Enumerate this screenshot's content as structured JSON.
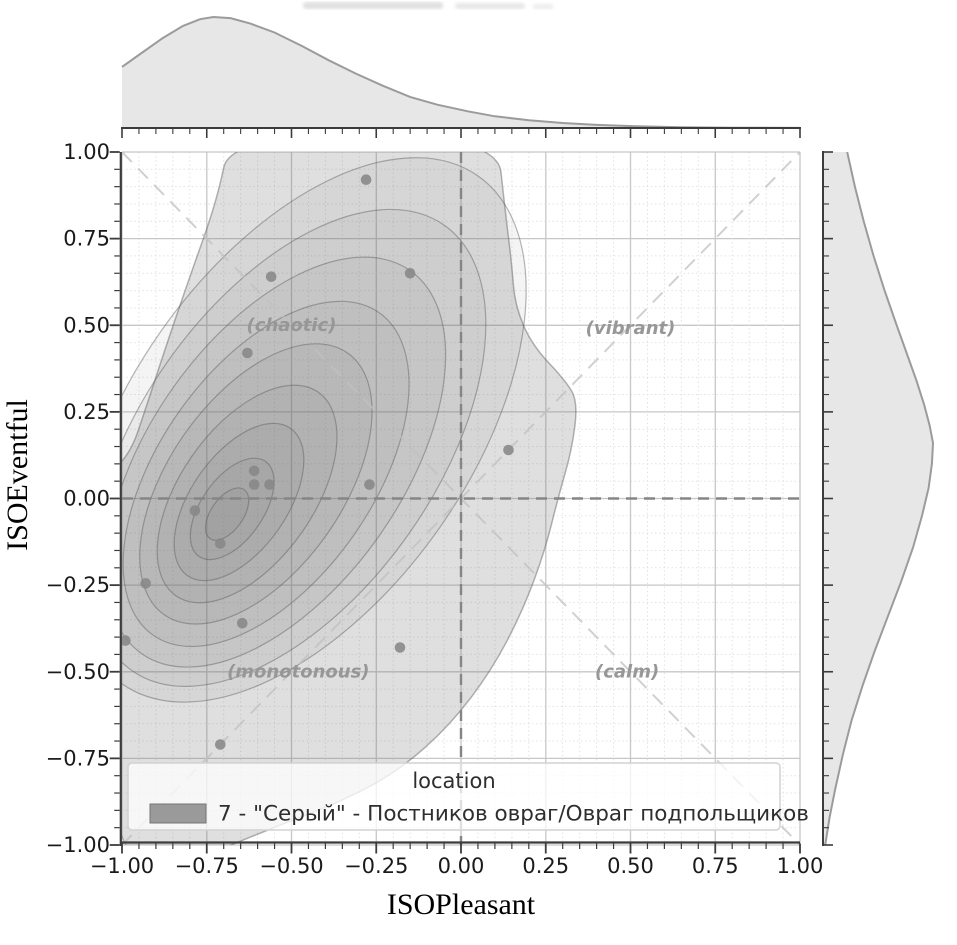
{
  "chart_data": {
    "type": "kde-contour-scatter-jointplot",
    "title": "",
    "xlabel": "ISOPleasant",
    "ylabel": "ISOEventful",
    "xlim": [
      -1,
      1
    ],
    "ylim": [
      -1,
      1
    ],
    "grid": {
      "major": true,
      "minor": true
    },
    "minor_tick_step": 0.05,
    "x_tick_values": [
      -1,
      -0.75,
      -0.5,
      -0.25,
      0,
      0.25,
      0.5,
      0.75,
      1
    ],
    "x_tick_labels": [
      "−1.00",
      "−0.75",
      "−0.50",
      "−0.25",
      "0.00",
      "0.25",
      "0.50",
      "0.75",
      "1.00"
    ],
    "y_tick_values": [
      1,
      0.75,
      0.5,
      0.25,
      0,
      -0.25,
      -0.5,
      -0.75,
      -1
    ],
    "y_tick_labels": [
      "1.00",
      "0.75",
      "0.50",
      "0.25",
      "0.00",
      "−0.25",
      "−0.50",
      "−0.75",
      "−1.00"
    ],
    "reference_lines": {
      "vertical_x": 0,
      "horizontal_y": 0,
      "diagonals": [
        [
          -1,
          -1,
          1,
          1
        ],
        [
          -1,
          1,
          1,
          -1
        ]
      ]
    },
    "quadrant_labels": [
      {
        "text": "(chaotic)",
        "x": -0.5,
        "y": 0.5
      },
      {
        "text": "(vibrant)",
        "x": 0.5,
        "y": 0.49
      },
      {
        "text": "(monotonous)",
        "x": -0.48,
        "y": -0.5
      },
      {
        "text": "(calm)",
        "x": 0.49,
        "y": -0.5
      }
    ],
    "points": [
      [
        -0.28,
        0.92
      ],
      [
        -0.56,
        0.64
      ],
      [
        -0.15,
        0.65
      ],
      [
        -0.63,
        0.42
      ],
      [
        0.14,
        0.14
      ],
      [
        -0.61,
        0.08
      ],
      [
        -0.61,
        0.04
      ],
      [
        -0.565,
        0.04
      ],
      [
        -0.27,
        0.04
      ],
      [
        -0.785,
        -0.035
      ],
      [
        -0.71,
        -0.13
      ],
      [
        -0.93,
        -0.245
      ],
      [
        -0.99,
        -0.41
      ],
      [
        -0.645,
        -0.36
      ],
      [
        -0.18,
        -0.43
      ],
      [
        -0.71,
        -0.71
      ]
    ],
    "kde_levels": {
      "outer_hull": [
        [
          -0.68,
          1.05
        ],
        [
          0.106,
          1.05
        ],
        [
          0.13,
          0.833
        ],
        [
          0.15,
          0.674
        ],
        [
          0.159,
          0.558
        ],
        [
          0.209,
          0.443
        ],
        [
          0.307,
          0.342
        ],
        [
          0.345,
          0.279
        ],
        [
          0.327,
          0.14
        ],
        [
          0.286,
          0.001
        ],
        [
          0.248,
          -0.149
        ],
        [
          0.183,
          -0.322
        ],
        [
          0.091,
          -0.495
        ],
        [
          -0.032,
          -0.654
        ],
        [
          -0.18,
          -0.783
        ],
        [
          -0.342,
          -0.87
        ],
        [
          -0.58,
          -0.96
        ],
        [
          -0.8,
          -1.05
        ],
        [
          -1.05,
          -1.05
        ],
        [
          -1.05,
          0.06
        ],
        [
          -0.975,
          0.13
        ],
        [
          -0.93,
          0.26
        ],
        [
          -0.87,
          0.44
        ],
        [
          -0.8,
          0.64
        ],
        [
          -0.72,
          0.86
        ]
      ],
      "ellipses": [
        {
          "cx": -0.475,
          "cy": 0.198,
          "a": 0.904,
          "b": 0.497
        },
        {
          "cx": -0.51,
          "cy": 0.146,
          "a": 0.793,
          "b": 0.432
        },
        {
          "cx": -0.546,
          "cy": 0.105,
          "a": 0.682,
          "b": 0.37
        },
        {
          "cx": -0.575,
          "cy": 0.071,
          "a": 0.574,
          "b": 0.312
        },
        {
          "cx": -0.605,
          "cy": 0.042,
          "a": 0.466,
          "b": 0.254
        },
        {
          "cx": -0.631,
          "cy": 0.013,
          "a": 0.362,
          "b": 0.195
        },
        {
          "cx": -0.655,
          "cy": -0.01,
          "a": 0.262,
          "b": 0.14
        },
        {
          "cx": -0.675,
          "cy": -0.03,
          "a": 0.169,
          "b": 0.09
        },
        {
          "cx": -0.69,
          "cy": -0.045,
          "a": 0.087,
          "b": 0.047
        }
      ],
      "rotation_deg": -55
    },
    "marginal_top_density": [
      [
        -1,
        0.55
      ],
      [
        -0.94,
        0.68
      ],
      [
        -0.88,
        0.81
      ],
      [
        -0.82,
        0.92
      ],
      [
        -0.77,
        0.98
      ],
      [
        -0.73,
        1.0
      ],
      [
        -0.68,
        0.99
      ],
      [
        -0.62,
        0.94
      ],
      [
        -0.55,
        0.86
      ],
      [
        -0.47,
        0.74
      ],
      [
        -0.39,
        0.61
      ],
      [
        -0.31,
        0.49
      ],
      [
        -0.23,
        0.38
      ],
      [
        -0.15,
        0.28
      ],
      [
        -0.07,
        0.21
      ],
      [
        0.02,
        0.15
      ],
      [
        0.1,
        0.105
      ],
      [
        0.2,
        0.07
      ],
      [
        0.3,
        0.045
      ],
      [
        0.4,
        0.028
      ],
      [
        0.52,
        0.015
      ],
      [
        0.65,
        0.007
      ],
      [
        0.8,
        0.003
      ],
      [
        1,
        0.001
      ]
    ],
    "marginal_right_density": [
      [
        1,
        0.22
      ],
      [
        0.9,
        0.29
      ],
      [
        0.8,
        0.37
      ],
      [
        0.7,
        0.46
      ],
      [
        0.6,
        0.56
      ],
      [
        0.5,
        0.67
      ],
      [
        0.42,
        0.76
      ],
      [
        0.34,
        0.85
      ],
      [
        0.27,
        0.92
      ],
      [
        0.21,
        0.97
      ],
      [
        0.16,
        1.0
      ],
      [
        0.1,
        0.99
      ],
      [
        0.03,
        0.96
      ],
      [
        -0.05,
        0.9
      ],
      [
        -0.14,
        0.82
      ],
      [
        -0.24,
        0.71
      ],
      [
        -0.34,
        0.59
      ],
      [
        -0.44,
        0.47
      ],
      [
        -0.54,
        0.36
      ],
      [
        -0.64,
        0.26
      ],
      [
        -0.74,
        0.18
      ],
      [
        -0.84,
        0.11
      ],
      [
        -0.92,
        0.06
      ],
      [
        -1,
        0.02
      ]
    ],
    "legend": {
      "title": "location",
      "entries": [
        {
          "swatch_color": "#9a9a9a",
          "label": "7 - \"Серый\" - Постников овраг/Овраг подпольщиков"
        }
      ]
    }
  },
  "colors": {
    "background": "#ffffff",
    "spine": "#3c3c3c",
    "tick_label": "#1a1a1a",
    "axis_title": "#000000",
    "grid_major": "#c7c7c7",
    "grid_minor": "#e2e2e2",
    "kde_fill_rgb": "110,110,110",
    "kde_outer_alpha": 0.22,
    "kde_level_alpha": 0.075,
    "contour_stroke": "rgba(90,90,90,0.45)",
    "scatter": "#878787",
    "zero_line_dash": "#858585",
    "diagonal_dash": "#c1c1c1",
    "quadrant_label": "#979797",
    "marginal_fill": "#e7e7e7",
    "marginal_stroke": "#9b9b9b",
    "legend_bg": "rgba(255,255,255,0.75)",
    "legend_border": "#d2d2d2",
    "legend_text": "#2e2e2e",
    "legend_swatch_border": "#757575"
  }
}
